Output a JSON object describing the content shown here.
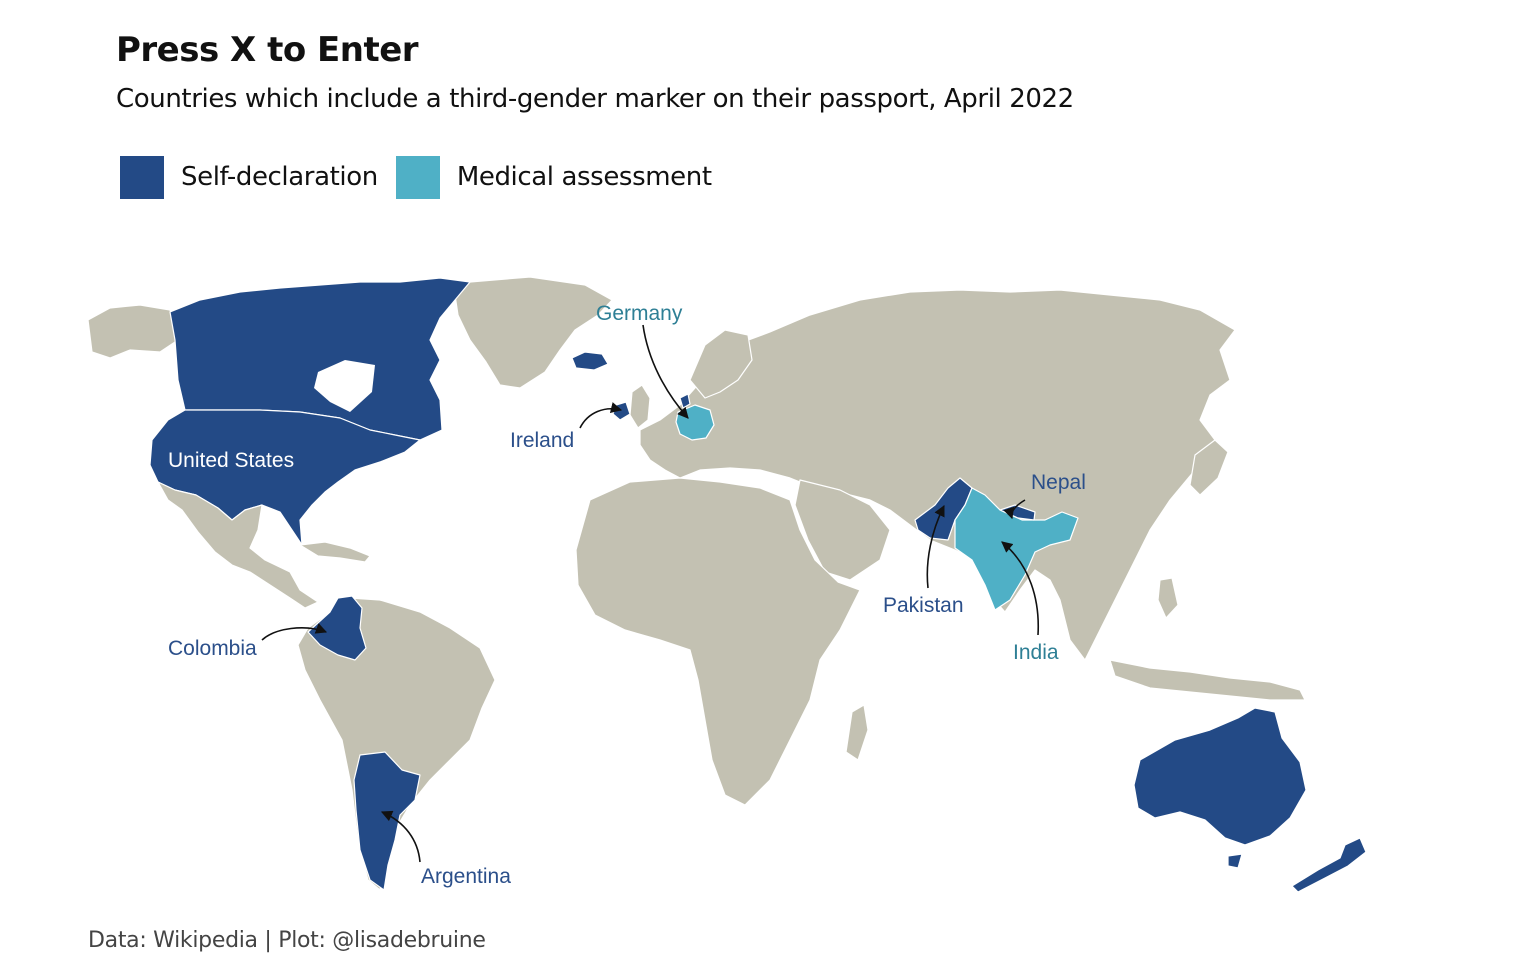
{
  "title": "Press X to Enter",
  "subtitle": "Countries which include a third-gender marker on their passport, April 2022",
  "legend": [
    {
      "label": "Self-declaration",
      "color": "#234a86"
    },
    {
      "label": "Medical assessment",
      "color": "#4fb0c6"
    }
  ],
  "colors": {
    "other_land": "#c3c1b2",
    "border": "#ffffff"
  },
  "countries": {
    "self_declaration": [
      "United States",
      "Colombia",
      "Argentina",
      "Ireland",
      "Pakistan",
      "Nepal",
      "Australia",
      "New Zealand",
      "Canada",
      "Iceland",
      "Denmark"
    ],
    "medical_assessment": [
      "Germany",
      "India"
    ]
  },
  "labels": {
    "united_states": "United States",
    "germany": "Germany",
    "ireland": "Ireland",
    "nepal": "Nepal",
    "pakistan": "Pakistan",
    "india": "India",
    "colombia": "Colombia",
    "argentina": "Argentina"
  },
  "caption": "Data: Wikipedia | Plot: @lisadebruine"
}
